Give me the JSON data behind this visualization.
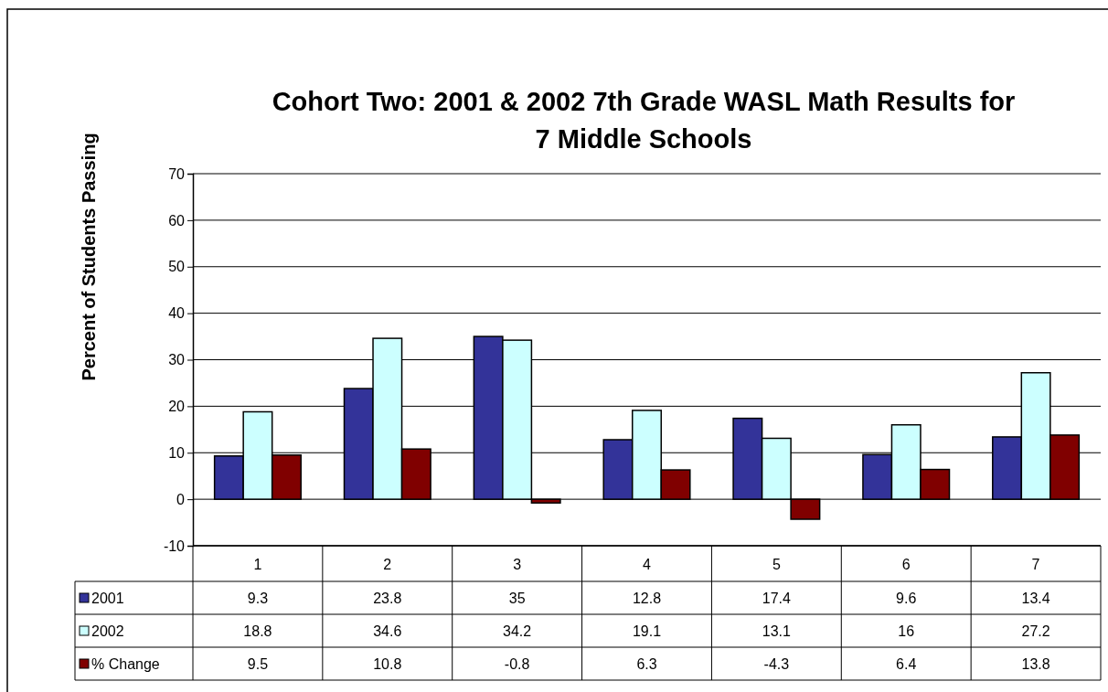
{
  "chart_data": {
    "type": "bar",
    "title": "Cohort Two: 2001 & 2002 7th Grade WASL Math Results for 7 Middle Schools",
    "ylabel": "Percent of Students Passing",
    "categories": [
      "1",
      "2",
      "3",
      "4",
      "5",
      "6",
      "7"
    ],
    "series": [
      {
        "name": "2001",
        "color": "#333399",
        "values": [
          9.3,
          23.8,
          35,
          12.8,
          17.4,
          9.6,
          13.4
        ]
      },
      {
        "name": "2002",
        "color": "#ccffff",
        "values": [
          18.8,
          34.6,
          34.2,
          19.1,
          13.1,
          16,
          27.2
        ]
      },
      {
        "name": "% Change",
        "color": "#800000",
        "values": [
          9.5,
          10.8,
          -0.8,
          6.3,
          -4.3,
          6.4,
          13.8
        ]
      }
    ],
    "ylim": [
      -10,
      70
    ],
    "yticks": [
      -10,
      0,
      10,
      20,
      30,
      40,
      50,
      60,
      70
    ],
    "grid": "y",
    "legend": "bottom left",
    "data_labels": true
  }
}
